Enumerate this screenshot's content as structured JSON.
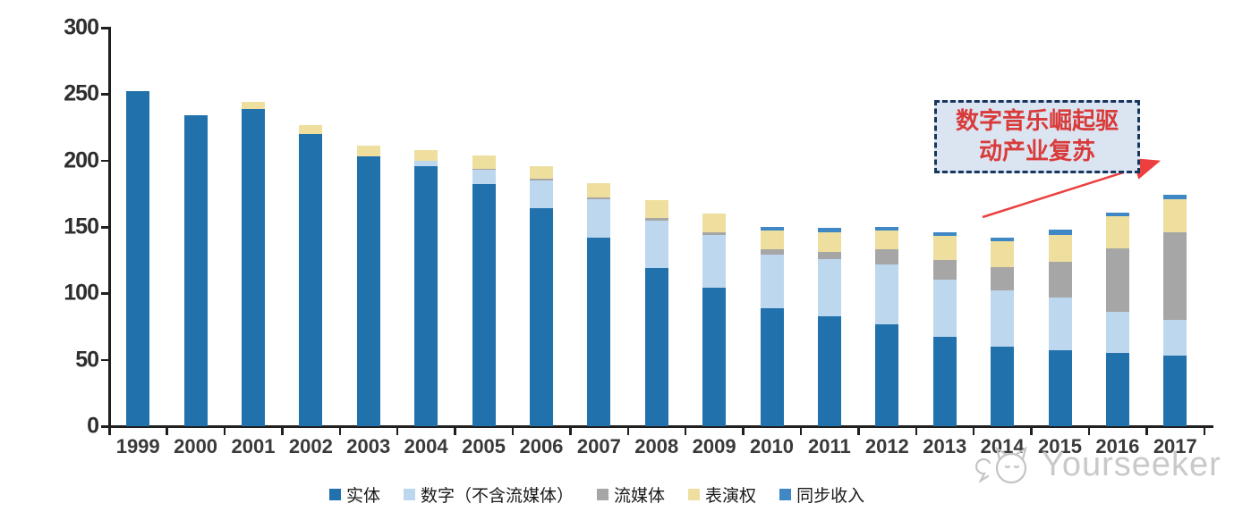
{
  "chart_data": {
    "type": "bar",
    "stacked": true,
    "title": "",
    "xlabel": "",
    "ylabel": "",
    "ylim": [
      0,
      300
    ],
    "yticks": [
      0,
      50,
      100,
      150,
      200,
      250,
      300
    ],
    "grid": false,
    "legend_position": "bottom",
    "categories": [
      "1999",
      "2000",
      "2001",
      "2002",
      "2003",
      "2004",
      "2005",
      "2006",
      "2007",
      "2008",
      "2009",
      "2010",
      "2011",
      "2012",
      "2013",
      "2014",
      "2015",
      "2016",
      "2017"
    ],
    "series": [
      {
        "name": "实体",
        "color": "#2171AC",
        "values": [
          252,
          234,
          239,
          220,
          203,
          196,
          182,
          164,
          142,
          119,
          104,
          89,
          83,
          77,
          67,
          60,
          57,
          55,
          53
        ]
      },
      {
        "name": "数字（不含流媒体）",
        "color": "#BDD7EE",
        "values": [
          0,
          0,
          0,
          0,
          0,
          4,
          11,
          21,
          29,
          36,
          40,
          40,
          43,
          45,
          43,
          42,
          40,
          31,
          27
        ]
      },
      {
        "name": "流媒体",
        "color": "#A6A6A6",
        "values": [
          0,
          0,
          0,
          0,
          0,
          0,
          1,
          1,
          1,
          2,
          2,
          4,
          5,
          11,
          15,
          18,
          27,
          48,
          66
        ]
      },
      {
        "name": "表演权",
        "color": "#EEDF9F",
        "values": [
          0,
          0,
          5,
          7,
          8,
          8,
          10,
          10,
          11,
          13,
          14,
          14,
          15,
          14,
          18,
          19,
          20,
          24,
          25
        ]
      },
      {
        "name": "同步收入",
        "color": "#3F88C5",
        "values": [
          0,
          0,
          0,
          0,
          0,
          0,
          0,
          0,
          0,
          0,
          0,
          3,
          3,
          3,
          3,
          3,
          4,
          3,
          3
        ]
      }
    ]
  },
  "annotation": {
    "line1": "数字音乐崛起驱",
    "line2": "动产业复苏",
    "text_color": "#D93A3A",
    "box_fill": "#DBE5F2",
    "box_border": "#17365D",
    "arrow_color": "#EC4040"
  },
  "watermark": {
    "text": "Yourseeker",
    "logo": "cat-logo",
    "color": "#c9c9c9"
  }
}
